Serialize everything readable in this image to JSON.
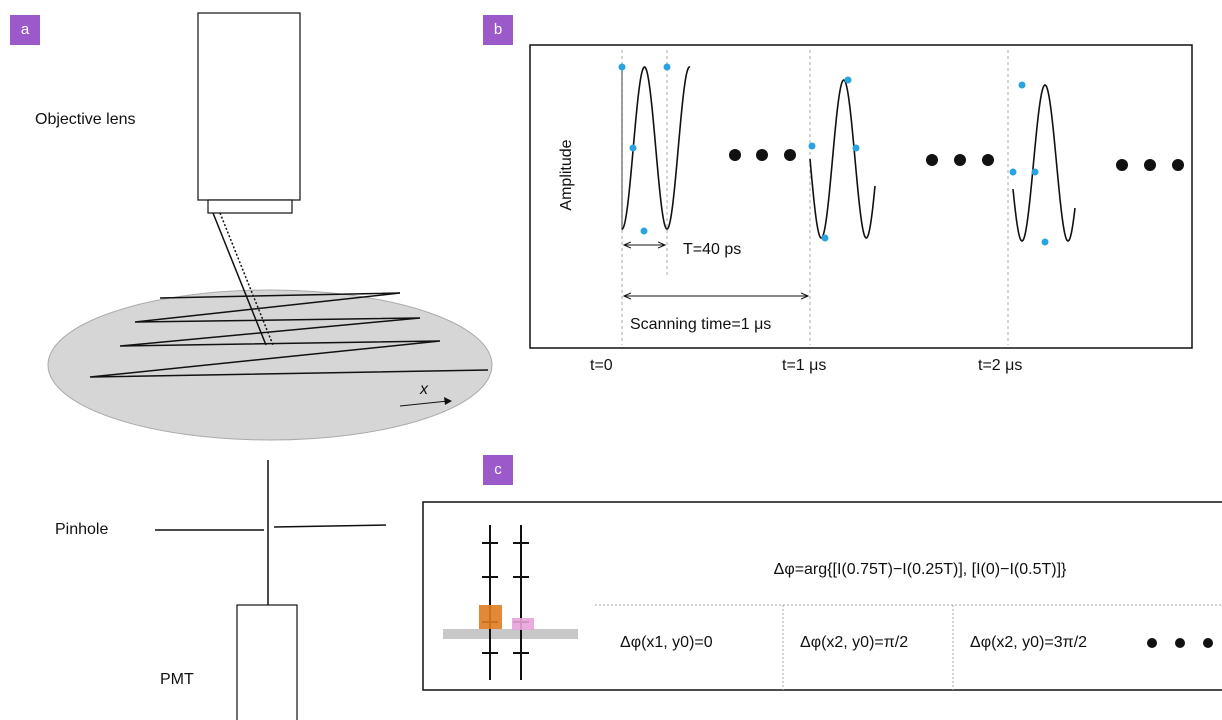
{
  "panel_a": {
    "label": "a",
    "objective_lens": "Objective lens",
    "axis_x": "x",
    "pinhole": "Pinhole",
    "pmt": "PMT"
  },
  "panel_b": {
    "label": "b",
    "y_axis": "Amplitude",
    "period": "T=40 ps",
    "scanning_time": "Scanning time=1 μs",
    "time_labels": [
      "t=0",
      "t=1 μs",
      "t=2 μs"
    ]
  },
  "panel_c": {
    "label": "c",
    "formula": "Δφ=arg{[I(0.75T)−I(0.25T)], [I(0)−I(0.5T)]}",
    "cells": [
      "Δφ(x1, y0)=0",
      "Δφ(x2, y0)=π/2",
      "Δφ(x2, y0)=3π/2"
    ]
  }
}
